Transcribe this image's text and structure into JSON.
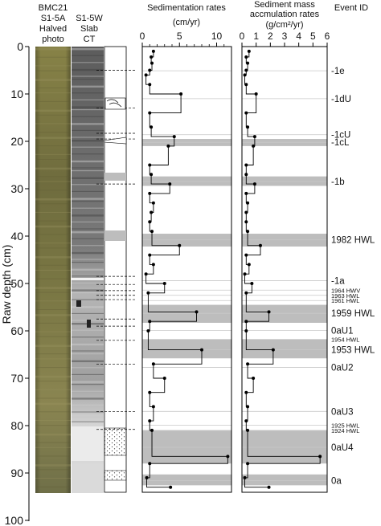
{
  "header": {
    "col1": [
      "BMC21",
      "S1-5A",
      "Halved",
      "photo"
    ],
    "col2": [
      "S1-5W",
      "Slab",
      "CT"
    ],
    "sed_title": "Sedimentation rates",
    "sed_unit": "(cm/yr)",
    "mass_title": [
      "Sediment mass",
      "accmulation rates"
    ],
    "mass_unit": "(g/cm²/yr)",
    "event_header": "Event ID"
  },
  "depth_axis": {
    "label": "Raw depth (cm)",
    "ticks": [
      0,
      10,
      20,
      30,
      40,
      50,
      60,
      70,
      80,
      90,
      100
    ],
    "range": [
      0,
      100
    ]
  },
  "chart_data": [
    {
      "type": "line",
      "title": "Sedimentation rates",
      "xlabel": "(cm/yr)",
      "ylabel": "Raw depth (cm)",
      "xlim": [
        0,
        12
      ],
      "xticks": [
        0,
        5,
        10
      ],
      "ylim": [
        100,
        0
      ],
      "grid": false,
      "series": [
        {
          "depth": [
            1,
            2.2,
            3.5,
            5,
            6,
            8,
            10,
            14,
            17,
            19,
            21,
            25,
            27,
            29,
            31,
            33,
            35,
            37,
            39,
            42,
            44,
            46,
            48,
            50,
            52,
            56,
            58,
            60,
            64,
            67,
            70,
            73,
            76,
            79,
            81,
            86.5,
            88,
            91,
            93
          ],
          "rate": [
            1.5,
            1.2,
            1.3,
            1.0,
            0.5,
            1.0,
            5.2,
            1.0,
            1.2,
            4.3,
            3.5,
            1.0,
            1.2,
            3.7,
            1.0,
            1.5,
            1.2,
            1.0,
            1.3,
            5.0,
            1.0,
            1.5,
            0.5,
            3.0,
            0.8,
            7.3,
            1.0,
            0.8,
            8.0,
            1.5,
            3.0,
            1.0,
            1.5,
            1.0,
            1.3,
            11.5,
            1.0,
            0.6,
            3.8
          ]
        }
      ]
    },
    {
      "type": "line",
      "title": "Sediment mass accmulation rates",
      "xlabel": "(g/cm²/yr)",
      "ylabel": "Raw depth (cm)",
      "xlim": [
        0,
        6
      ],
      "xticks": [
        0,
        1,
        2,
        3,
        4,
        5,
        6
      ],
      "ylim": [
        100,
        0
      ],
      "grid": false,
      "series": [
        {
          "depth": [
            1,
            2.2,
            3.5,
            5,
            6,
            8,
            10,
            14,
            17,
            19,
            21,
            25,
            27,
            29,
            31,
            33,
            35,
            37,
            39,
            42,
            44,
            46,
            48,
            50,
            52,
            56,
            58,
            60,
            64,
            67,
            70,
            73,
            76,
            79,
            81,
            86.5,
            88,
            91,
            93
          ],
          "rate": [
            0.5,
            0.3,
            0.4,
            0.3,
            0.2,
            0.3,
            1.0,
            0.3,
            0.4,
            0.9,
            0.8,
            0.3,
            0.3,
            0.9,
            0.3,
            0.4,
            0.3,
            0.3,
            0.4,
            1.3,
            0.3,
            0.5,
            0.2,
            0.7,
            0.3,
            1.9,
            0.3,
            0.3,
            2.2,
            0.4,
            0.8,
            0.3,
            0.4,
            0.3,
            0.4,
            5.5,
            0.4,
            0.2,
            1.9
          ]
        }
      ]
    }
  ],
  "event_layers": [
    {
      "id": "-1e",
      "depth": 5.1,
      "font": "big"
    },
    {
      "id": "-1dU",
      "depth": 11,
      "font": "big"
    },
    {
      "id": "-1cU",
      "depth": 18.6,
      "font": "big"
    },
    {
      "id": "-1cL",
      "depth": 20.2,
      "font": "big",
      "band": [
        19.5,
        21
      ]
    },
    {
      "id": "-1b",
      "depth": 28.5,
      "font": "big",
      "band": [
        27.4,
        29.4
      ]
    },
    {
      "id": "1982 HWL",
      "depth": 40.8,
      "font": "big",
      "band": [
        39.5,
        42.2
      ]
    },
    {
      "id": "-1a",
      "depth": 49.4,
      "font": "big"
    },
    {
      "id": "1964 HWV",
      "depth": 51.4,
      "font": "small"
    },
    {
      "id": "1963 HWL",
      "depth": 52.5,
      "font": "small"
    },
    {
      "id": "1961 HWL",
      "depth": 53.6,
      "font": "small"
    },
    {
      "id": "1959 HWL",
      "depth": 56.3,
      "font": "big",
      "band": [
        54.5,
        58.3
      ]
    },
    {
      "id": "0aU1",
      "depth": 59.9,
      "font": "big"
    },
    {
      "id": "1954 HWL",
      "depth": 61.8,
      "font": "small"
    },
    {
      "id": "1953 HWL",
      "depth": 64.0,
      "font": "big",
      "band": [
        61.8,
        65.8
      ]
    },
    {
      "id": "0aU2",
      "depth": 67.7,
      "font": "big"
    },
    {
      "id": "0aU3",
      "depth": 77.0,
      "font": "big"
    },
    {
      "id": "1925 HWL",
      "depth": 79.9,
      "font": "small"
    },
    {
      "id": "1924 HWL",
      "depth": 81.0,
      "font": "small"
    },
    {
      "id": "0aU4",
      "depth": 84.6,
      "font": "big",
      "band": [
        81,
        88
      ]
    },
    {
      "id": "0a",
      "depth": 91.6,
      "font": "big",
      "band": [
        90.3,
        92.6
      ]
    }
  ],
  "colors": {
    "band": "#bdbdbd",
    "event_line": "#c8c8c8",
    "core_photo": "#7e7a45",
    "core_ct": "#8a8a8a",
    "series": "#000000"
  },
  "lithology": {
    "dashed_boundaries": [
      5,
      13,
      18.3,
      19.5,
      29,
      48.5,
      50.2,
      51.5,
      52.5,
      53.4,
      57.5,
      59,
      62,
      67,
      77,
      80.8
    ]
  }
}
